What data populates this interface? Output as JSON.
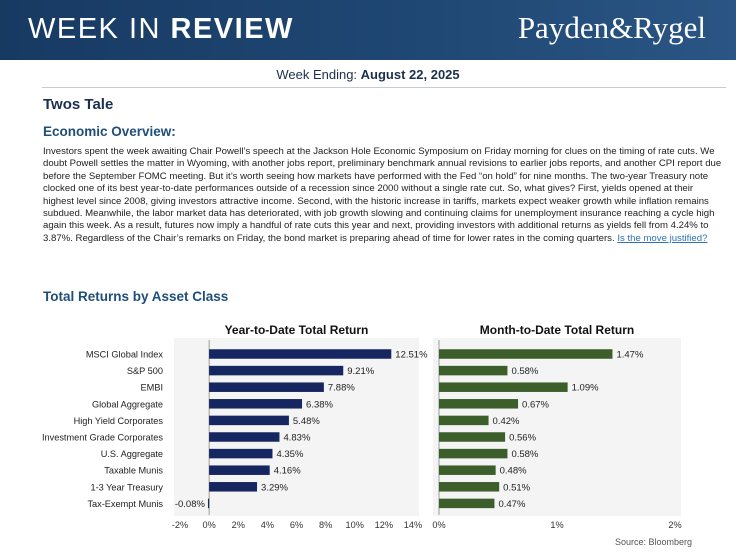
{
  "header": {
    "title_light": "WEEK IN ",
    "title_bold": "REVIEW",
    "logo": "Payden&Rygel",
    "week_label": "Week Ending: ",
    "week_date": "August 22, 2025"
  },
  "article": {
    "title": "Twos Tale",
    "section": "Economic Overview:",
    "body": "Investors spent the week awaiting Chair Powell’s speech at the Jackson Hole Economic Symposium on Friday morning for clues on the timing of rate cuts. We doubt Powell settles the matter in Wyoming, with another jobs report, preliminary benchmark annual revisions to earlier jobs reports, and another CPI report due before the September FOMC meeting. But it’s worth seeing how markets have performed with the Fed “on hold” for nine months. The two-year Treasury note clocked one of its best year-to-date performances outside of a recession since 2000 without a single rate cut. So, what gives? First, yields opened at their highest level since 2008, giving investors attractive income. Second, with the historic increase in tariffs, markets expect weaker growth while inflation remains subdued. Meanwhile, the labor market data has deteriorated, with job growth slowing and continuing claims for unemployment insurance reaching a cycle high again this week. As a result, futures now imply a handful of rate cuts this year and next, providing investors with additional returns as yields fell from 4.24% to 3.87%. Regardless of the Chair’s remarks on Friday, the bond market is preparing ahead of time for lower rates in the coming quarters. ",
    "link_text": "Is the move justified?"
  },
  "returns_title": "Total Returns by Asset Class",
  "source": "Source: Bloomberg",
  "colors": {
    "ytd_bar": "#162660",
    "mtd_bar": "#3b5e2b",
    "banner": "#1f4773"
  },
  "chart_data": [
    {
      "type": "bar",
      "orientation": "horizontal",
      "title": "Year-to-Date Total Return",
      "categories": [
        "MSCI Global Index",
        "S&P 500",
        "EMBI",
        "Global Aggregate",
        "High Yield Corporates",
        "Investment Grade Corporates",
        "U.S. Aggregate",
        "Taxable Munis",
        "1-3 Year Treasury",
        "Tax-Exempt Munis"
      ],
      "values": [
        12.51,
        9.21,
        7.88,
        6.38,
        5.48,
        4.83,
        4.35,
        4.16,
        3.29,
        -0.08
      ],
      "value_labels": [
        "12.51%",
        "9.21%",
        "7.88%",
        "6.38%",
        "5.48%",
        "4.83%",
        "4.35%",
        "4.16%",
        "3.29%",
        "-0.08%"
      ],
      "xlim": [
        -2,
        14
      ],
      "ticks": [
        -2,
        0,
        2,
        4,
        6,
        8,
        10,
        12,
        14
      ],
      "tick_labels": [
        "-2%",
        "0%",
        "2%",
        "4%",
        "6%",
        "8%",
        "10%",
        "12%",
        "14%"
      ]
    },
    {
      "type": "bar",
      "orientation": "horizontal",
      "title": "Month-to-Date Total Return",
      "categories": [
        "MSCI Global Index",
        "S&P 500",
        "EMBI",
        "Global Aggregate",
        "High Yield Corporates",
        "Investment Grade Corporates",
        "U.S. Aggregate",
        "Taxable Munis",
        "1-3 Year Treasury",
        "Tax-Exempt Munis"
      ],
      "values": [
        1.47,
        0.58,
        1.09,
        0.67,
        0.42,
        0.56,
        0.58,
        0.48,
        0.51,
        0.47
      ],
      "value_labels": [
        "1.47%",
        "0.58%",
        "1.09%",
        "0.67%",
        "0.42%",
        "0.56%",
        "0.58%",
        "0.48%",
        "0.51%",
        "0.47%"
      ],
      "xlim": [
        0,
        2
      ],
      "ticks": [
        0,
        1,
        2
      ],
      "tick_labels": [
        "0%",
        "1%",
        "2%"
      ]
    }
  ]
}
